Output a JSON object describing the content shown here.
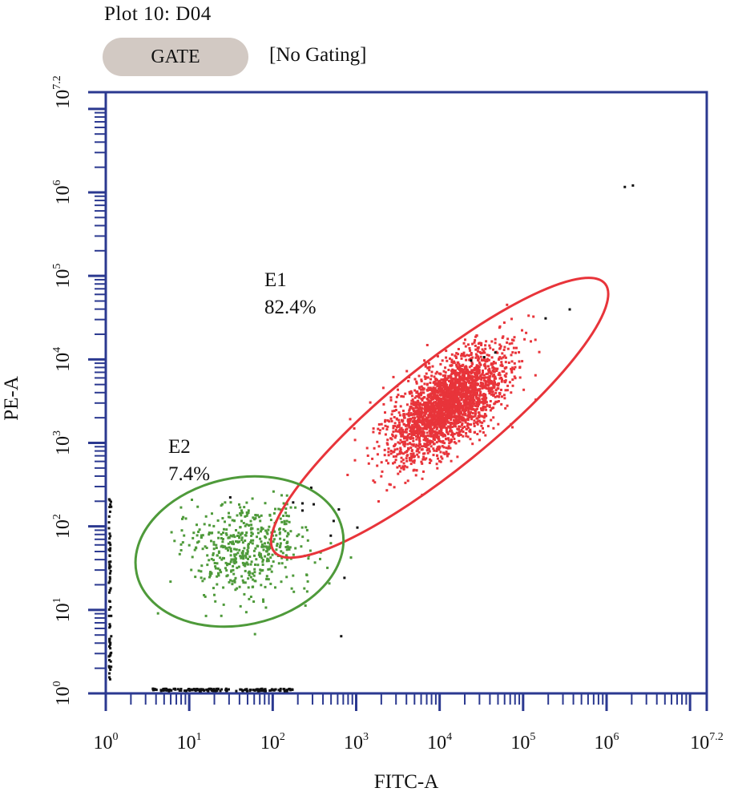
{
  "header": {
    "plot_title": "Plot 10: D04",
    "gate_button_label": "GATE",
    "gate_status": "[No Gating]"
  },
  "colors": {
    "axis": "#2b3990",
    "gate_e1": "#e8343a",
    "gate_e2": "#4e9a3a",
    "events_e1": "#e8343a",
    "events_e2": "#4e9a3a",
    "events_ungated": "#111111",
    "gate_button_bg": "#d2c9c3"
  },
  "chart_data": {
    "type": "scatter",
    "xlabel": "FITC-A",
    "ylabel": "PE-A",
    "scale": "log10",
    "xlim": [
      1,
      15848932
    ],
    "ylim": [
      1,
      15848932
    ],
    "x_ticks": [
      {
        "base": "10",
        "exp": "0",
        "value": 1
      },
      {
        "base": "10",
        "exp": "1",
        "value": 10
      },
      {
        "base": "10",
        "exp": "2",
        "value": 100
      },
      {
        "base": "10",
        "exp": "3",
        "value": 1000
      },
      {
        "base": "10",
        "exp": "4",
        "value": 10000
      },
      {
        "base": "10",
        "exp": "5",
        "value": 100000
      },
      {
        "base": "10",
        "exp": "6",
        "value": 1000000
      },
      {
        "base": "10",
        "exp": "7.2",
        "value": 15848932
      }
    ],
    "y_ticks": [
      {
        "base": "10",
        "exp": "0",
        "value": 1
      },
      {
        "base": "10",
        "exp": "1",
        "value": 10
      },
      {
        "base": "10",
        "exp": "2",
        "value": 100
      },
      {
        "base": "10",
        "exp": "3",
        "value": 1000
      },
      {
        "base": "10",
        "exp": "4",
        "value": 10000
      },
      {
        "base": "10",
        "exp": "5",
        "value": 100000
      },
      {
        "base": "10",
        "exp": "6",
        "value": 1000000
      },
      {
        "base": "10",
        "exp": "7.2",
        "value": 15848932
      }
    ],
    "gates": [
      {
        "name": "E1",
        "percent": "82.4%",
        "center": [
          10000,
          2000
        ],
        "log_radius_major": 2.55,
        "log_radius_minor": 0.62,
        "angle_deg": 39
      },
      {
        "name": "E2",
        "percent": "7.4%",
        "center": [
          40,
          50
        ],
        "log_radius_major": 1.26,
        "log_radius_minor": 0.88,
        "angle_deg": 12
      }
    ],
    "populations": [
      {
        "gate": "E1",
        "count": 2600,
        "center": [
          12000,
          3000
        ],
        "log_spread_major": 0.42,
        "log_spread_minor": 0.2,
        "angle_deg": 42
      },
      {
        "gate": "E2",
        "count": 520,
        "center": [
          50,
          55
        ],
        "log_spread_major": 0.38,
        "log_spread_minor": 0.3,
        "angle_deg": 10
      }
    ],
    "ungated_events": [
      [
        2000000,
        1250000
      ],
      [
        1600000,
        1200000
      ],
      [
        45000,
        12500
      ],
      [
        33000,
        11000
      ],
      [
        23000,
        10000
      ],
      [
        350000,
        41000
      ],
      [
        180000,
        32000
      ],
      [
        1000,
        100
      ],
      [
        480,
        80
      ],
      [
        700,
        25
      ],
      [
        640,
        5
      ],
      [
        280,
        300
      ],
      [
        300,
        190
      ],
      [
        220,
        160
      ],
      [
        170,
        200
      ],
      [
        600,
        165
      ],
      [
        520,
        120
      ],
      [
        30,
        230
      ],
      [
        220,
        195
      ]
    ],
    "bottom_band": {
      "x_min": 3.5,
      "x_max": 170,
      "y": 1.1
    },
    "left_band": {
      "x": 1.1,
      "y_min": 1.5,
      "y_max": 220
    }
  }
}
